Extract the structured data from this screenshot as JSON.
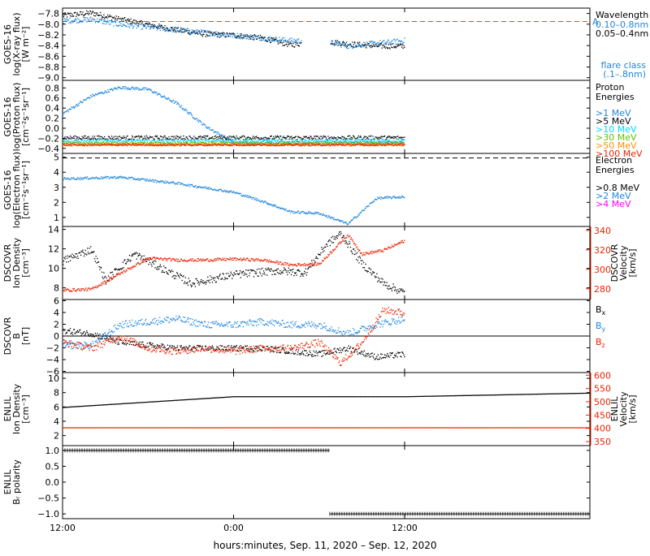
{
  "colors": {
    "black": "#000000",
    "blue": "#1f86dc",
    "cyan": "#00d8ff",
    "green": "#5ec400",
    "orange": "#ff9000",
    "red": "#ee2200",
    "magenta": "#ff00ff"
  },
  "xaxis": {
    "start": "2020-09-11T12:00",
    "end": "2020-09-13T01:00",
    "ticks": [
      {
        "t": "2020-09-11T12:00",
        "label": "12:00"
      },
      {
        "t": "2020-09-12T00:00",
        "label": "0:00"
      },
      {
        "t": "2020-09-12T12:00",
        "label": "12:00"
      }
    ],
    "title": "hours:minutes, Sep. 11, 2020 – Sep. 12, 2020"
  },
  "chart_data": [
    {
      "type": "scatter",
      "panel": "xray",
      "ylabel": [
        "GOES-16",
        "log(X-ray flux)",
        "[W m⁻²]"
      ],
      "ylim": [
        -9.05,
        -7.7
      ],
      "yticks": [
        -7.8,
        -8.0,
        -8.2,
        -8.4,
        -8.6,
        -8.8,
        -9.0
      ],
      "ytick_labels": [
        "−7.8",
        "−8.0",
        "−8.2",
        "−8.4",
        "−8.6",
        "−8.8",
        "−9.0"
      ],
      "right_ticks": [
        {
          "y": -7.95,
          "label": "A"
        }
      ],
      "reference_line": {
        "y": -7.95,
        "style": "dashed",
        "color": "#1f86dc"
      },
      "legend_title": "Wavelength",
      "legend_extra": [
        "flare class",
        "(.1–.8nm)"
      ],
      "series": [
        {
          "name": "0.05–0.4nm",
          "color": "#000000",
          "knots": [
            [
              "2020-09-11T12:00",
              -7.83
            ],
            [
              "2020-09-11T14:00",
              -7.78
            ],
            [
              "2020-09-11T16:00",
              -7.9
            ],
            [
              "2020-09-11T18:00",
              -8.0
            ],
            [
              "2020-09-11T20:00",
              -8.1
            ],
            [
              "2020-09-11T22:00",
              -8.18
            ],
            [
              "2020-09-12T00:00",
              -8.2
            ],
            [
              "2020-09-12T02:00",
              -8.25
            ],
            [
              "2020-09-12T04:00",
              -8.38
            ],
            [
              "2020-09-12T06:00",
              -8.3
            ],
            [
              "2020-09-12T08:00",
              -8.36
            ],
            [
              "2020-09-12T10:00",
              -8.4
            ],
            [
              "2020-09-12T12:00",
              -8.4
            ]
          ],
          "gaps": [
            [
              "2020-09-12T04:45",
              "2020-09-12T06:45"
            ]
          ],
          "end": "2020-09-12T12:00",
          "noise": 0.05
        },
        {
          "name": "0.10–0.8nm",
          "color": "#1f86dc",
          "knots": [
            [
              "2020-09-11T12:00",
              -7.93
            ],
            [
              "2020-09-11T14:00",
              -7.9
            ],
            [
              "2020-09-11T16:00",
              -8.0
            ],
            [
              "2020-09-11T18:00",
              -8.05
            ],
            [
              "2020-09-11T20:00",
              -8.1
            ],
            [
              "2020-09-11T22:00",
              -8.15
            ],
            [
              "2020-09-12T00:00",
              -8.2
            ],
            [
              "2020-09-12T02:00",
              -8.25
            ],
            [
              "2020-09-12T04:00",
              -8.3
            ],
            [
              "2020-09-12T06:00",
              -8.3
            ],
            [
              "2020-09-12T08:00",
              -8.4
            ],
            [
              "2020-09-12T10:00",
              -8.35
            ],
            [
              "2020-09-12T12:00",
              -8.3
            ]
          ],
          "gaps": [
            [
              "2020-09-12T04:45",
              "2020-09-12T06:45"
            ]
          ],
          "end": "2020-09-12T12:00",
          "noise": 0.05
        }
      ]
    },
    {
      "type": "scatter",
      "panel": "proton",
      "ylabel": [
        "GOES-16",
        "log(Proton flux)",
        "[cm⁻²s⁻¹sr⁻¹]"
      ],
      "ylim": [
        -0.5,
        0.95
      ],
      "yticks": [
        0.8,
        0.6,
        0.4,
        0.2,
        0.0,
        -0.2,
        -0.4
      ],
      "ytick_labels": [
        "0.8",
        "0.6",
        "0.4",
        "0.2",
        "0.0",
        "−0.2",
        "−0.4"
      ],
      "legend_title": "Proton Energies",
      "series": [
        {
          "name": ">1 MeV",
          "color": "#1f86dc",
          "knots": [
            [
              "2020-09-11T12:00",
              0.3
            ],
            [
              "2020-09-11T14:00",
              0.65
            ],
            [
              "2020-09-11T16:00",
              0.82
            ],
            [
              "2020-09-11T18:00",
              0.78
            ],
            [
              "2020-09-11T20:00",
              0.5
            ],
            [
              "2020-09-11T22:00",
              0.05
            ],
            [
              "2020-09-12T00:00",
              -0.28
            ],
            [
              "2020-09-12T12:00",
              -0.28
            ]
          ],
          "end": "2020-09-12T12:00",
          "noise": 0.03
        },
        {
          "name": ">5 MeV",
          "color": "#000000",
          "knots": [
            [
              "2020-09-11T12:00",
              -0.18
            ],
            [
              "2020-09-12T12:00",
              -0.18
            ]
          ],
          "end": "2020-09-12T12:00",
          "noise": 0.04
        },
        {
          "name": ">10 MeV",
          "color": "#00d8ff",
          "knots": [
            [
              "2020-09-11T12:00",
              -0.24
            ],
            [
              "2020-09-12T12:00",
              -0.24
            ]
          ],
          "end": "2020-09-12T12:00",
          "noise": 0.03
        },
        {
          "name": ">30 MeV",
          "color": "#5ec400",
          "knots": [
            [
              "2020-09-11T12:00",
              -0.29
            ],
            [
              "2020-09-12T12:00",
              -0.29
            ]
          ],
          "end": "2020-09-12T12:00",
          "noise": 0.03
        },
        {
          "name": ">50 MeV",
          "color": "#ff9000",
          "knots": [
            [
              "2020-09-11T12:00",
              -0.31
            ],
            [
              "2020-09-12T12:00",
              -0.31
            ]
          ],
          "end": "2020-09-12T12:00",
          "noise": 0.03
        },
        {
          "name": ">100 MeV",
          "color": "#ee2200",
          "knots": [
            [
              "2020-09-11T12:00",
              -0.32
            ],
            [
              "2020-09-12T12:00",
              -0.32
            ]
          ],
          "end": "2020-09-12T12:00",
          "noise": 0.02
        }
      ]
    },
    {
      "type": "scatter",
      "panel": "electron",
      "ylabel": [
        "GOES-16",
        "log(Electron flux)",
        "[cm⁻²s⁻¹sr⁻¹]"
      ],
      "ylim": [
        0.4,
        5.25
      ],
      "yticks": [
        5,
        4,
        3,
        2,
        1
      ],
      "ytick_labels": [
        "5",
        "4",
        "3",
        "2",
        "1"
      ],
      "reference_line": {
        "y": 4.95,
        "style": "dashed",
        "color": "#000000"
      },
      "legend_title": "Electron Energies",
      "series": [
        {
          "name": ">0.8 MeV",
          "color": "#000000",
          "knots": [],
          "noise": 0
        },
        {
          "name": ">2 MeV",
          "color": "#1f86dc",
          "knots": [
            [
              "2020-09-11T12:00",
              3.6
            ],
            [
              "2020-09-11T16:00",
              3.7
            ],
            [
              "2020-09-11T20:00",
              3.3
            ],
            [
              "2020-09-11T22:00",
              3.0
            ],
            [
              "2020-09-12T00:00",
              2.7
            ],
            [
              "2020-09-12T02:00",
              2.1
            ],
            [
              "2020-09-12T04:00",
              1.4
            ],
            [
              "2020-09-12T06:00",
              1.3
            ],
            [
              "2020-09-12T08:00",
              0.6
            ],
            [
              "2020-09-12T10:00",
              2.3
            ],
            [
              "2020-09-12T12:00",
              2.4
            ]
          ],
          "end": "2020-09-12T12:00",
          "noise": 0.08
        },
        {
          "name": ">4 MeV",
          "color": "#ff00ff",
          "knots": [],
          "noise": 0
        }
      ]
    },
    {
      "type": "scatter",
      "panel": "dscovr_density",
      "ylabel": [
        "DSCOVR",
        "Ion Density",
        "[cm⁻³]"
      ],
      "ylim": [
        6.8,
        14.3
      ],
      "yticks": [
        14,
        12,
        10,
        8
      ],
      "ytick_labels": [
        "14",
        "12",
        "10",
        "8"
      ],
      "ylabel_right": [
        "DSCOVR",
        "Velocity",
        "[km/s]"
      ],
      "ylim_right": [
        269,
        344
      ],
      "yticks_right": [
        340,
        320,
        300,
        280
      ],
      "ytick_labels_right": [
        "340",
        "320",
        "300",
        "280"
      ],
      "series": [
        {
          "name": "Ion Density",
          "color": "#000000",
          "axis": "left",
          "knots": [
            [
              "2020-09-11T12:00",
              10.8
            ],
            [
              "2020-09-11T14:00",
              12.0
            ],
            [
              "2020-09-11T15:00",
              8.8
            ],
            [
              "2020-09-11T17:00",
              11.5
            ],
            [
              "2020-09-11T19:00",
              10.0
            ],
            [
              "2020-09-11T21:00",
              8.5
            ],
            [
              "2020-09-12T00:00",
              9.4
            ],
            [
              "2020-09-12T03:00",
              9.8
            ],
            [
              "2020-09-12T05:00",
              9.6
            ],
            [
              "2020-09-12T06:30",
              12.5
            ],
            [
              "2020-09-12T07:30",
              13.6
            ],
            [
              "2020-09-12T09:00",
              10.5
            ],
            [
              "2020-09-12T10:30",
              8.5
            ],
            [
              "2020-09-12T12:00",
              7.5
            ]
          ],
          "end": "2020-09-12T12:00",
          "noise": 0.4
        },
        {
          "name": "Velocity",
          "color": "#ee2200",
          "axis": "right",
          "knots": [
            [
              "2020-09-11T12:00",
              279
            ],
            [
              "2020-09-11T14:00",
              280
            ],
            [
              "2020-09-11T16:00",
              296
            ],
            [
              "2020-09-11T18:00",
              312
            ],
            [
              "2020-09-11T20:00",
              310
            ],
            [
              "2020-09-11T22:00",
              310
            ],
            [
              "2020-09-12T00:00",
              311
            ],
            [
              "2020-09-12T02:00",
              310
            ],
            [
              "2020-09-12T04:00",
              305
            ],
            [
              "2020-09-12T06:00",
              306
            ],
            [
              "2020-09-12T08:00",
              336
            ],
            [
              "2020-09-12T09:00",
              316
            ],
            [
              "2020-09-12T10:30",
              320
            ],
            [
              "2020-09-12T12:00",
              330
            ]
          ],
          "end": "2020-09-12T12:00",
          "noise": 1.5
        }
      ]
    },
    {
      "type": "scatter",
      "panel": "dscovr_b",
      "ylabel": [
        "DSCOVR",
        "B",
        "[nT]"
      ],
      "ylim": [
        -6.2,
        6.2
      ],
      "yticks": [
        6,
        4,
        2,
        0,
        -2,
        -4,
        -6
      ],
      "ytick_labels": [
        "6",
        "4",
        "2",
        "0",
        "−2",
        "−4",
        "−6"
      ],
      "zero_line": true,
      "series": [
        {
          "name": "Bₓ",
          "color": "#000000",
          "knots": [
            [
              "2020-09-11T12:00",
              1.0
            ],
            [
              "2020-09-11T14:00",
              0.5
            ],
            [
              "2020-09-11T16:00",
              -1.0
            ],
            [
              "2020-09-11T18:00",
              -1.5
            ],
            [
              "2020-09-11T20:00",
              -2.0
            ],
            [
              "2020-09-11T22:00",
              -2.0
            ],
            [
              "2020-09-12T00:00",
              -2.0
            ],
            [
              "2020-09-12T02:00",
              -2.0
            ],
            [
              "2020-09-12T04:00",
              -2.5
            ],
            [
              "2020-09-12T06:00",
              -3.0
            ],
            [
              "2020-09-12T08:00",
              -2.0
            ],
            [
              "2020-09-12T10:00",
              -3.5
            ],
            [
              "2020-09-12T12:00",
              -3.0
            ]
          ],
          "end": "2020-09-12T12:00",
          "noise": 0.5
        },
        {
          "name": "Bᵧ",
          "color": "#1f86dc",
          "knots": [
            [
              "2020-09-11T12:00",
              -1.5
            ],
            [
              "2020-09-11T14:00",
              -1.5
            ],
            [
              "2020-09-11T16:00",
              2.0
            ],
            [
              "2020-09-11T18:00",
              2.5
            ],
            [
              "2020-09-11T20:00",
              3.0
            ],
            [
              "2020-09-11T22:00",
              2.0
            ],
            [
              "2020-09-12T00:00",
              2.0
            ],
            [
              "2020-09-12T02:00",
              2.5
            ],
            [
              "2020-09-12T04:00",
              2.0
            ],
            [
              "2020-09-12T06:00",
              2.0
            ],
            [
              "2020-09-12T08:00",
              0.5
            ],
            [
              "2020-09-12T10:00",
              2.0
            ],
            [
              "2020-09-12T12:00",
              3.0
            ]
          ],
          "end": "2020-09-12T12:00",
          "noise": 0.6
        },
        {
          "name": "B_z",
          "color": "#ee2200",
          "knots": [
            [
              "2020-09-11T12:00",
              -1.0
            ],
            [
              "2020-09-11T14:00",
              -2.0
            ],
            [
              "2020-09-11T16:00",
              0.0
            ],
            [
              "2020-09-11T18:00",
              -2.0
            ],
            [
              "2020-09-11T20:00",
              -2.5
            ],
            [
              "2020-09-11T22:00",
              -2.0
            ],
            [
              "2020-09-12T00:00",
              -2.5
            ],
            [
              "2020-09-12T02:00",
              -2.0
            ],
            [
              "2020-09-12T04:00",
              -2.0
            ],
            [
              "2020-09-12T06:00",
              -1.0
            ],
            [
              "2020-09-12T07:30",
              -4.5
            ],
            [
              "2020-09-12T09:00",
              -1.0
            ],
            [
              "2020-09-12T10:30",
              4.5
            ],
            [
              "2020-09-12T12:00",
              4.0
            ]
          ],
          "end": "2020-09-12T12:00",
          "noise": 0.6
        }
      ],
      "legend_labels": [
        {
          "main": "B",
          "sub": "x",
          "color": "#000000"
        },
        {
          "main": "B",
          "sub": "y",
          "color": "#1f86dc"
        },
        {
          "main": "B",
          "sub": "z",
          "color": "#ee2200"
        }
      ]
    },
    {
      "type": "scatter",
      "panel": "enlil_density",
      "ylabel": [
        "ENLIL",
        "Ion Density",
        "[cm⁻³]"
      ],
      "ylim": [
        0.6,
        10.8
      ],
      "yticks": [
        10,
        8,
        6,
        4,
        2
      ],
      "ytick_labels": [
        "10",
        "8",
        "6",
        "4",
        "2"
      ],
      "ylabel_right": [
        "ENLIL",
        "Velocity",
        "[km/s]"
      ],
      "ylim_right": [
        335,
        610
      ],
      "yticks_right": [
        600,
        550,
        500,
        450,
        400,
        350
      ],
      "ytick_labels_right": [
        "600",
        "550",
        "500",
        "450",
        "400",
        "350"
      ],
      "series": [
        {
          "name": "Ion Density",
          "color": "#000000",
          "axis": "left",
          "knots": [
            [
              "2020-09-11T12:00",
              6.0
            ],
            [
              "2020-09-12T00:00",
              7.5
            ],
            [
              "2020-09-12T12:00",
              7.5
            ],
            [
              "2020-09-13T01:00",
              8.0
            ]
          ],
          "end": "2020-09-13T01:00",
          "noise": 0
        },
        {
          "name": "Velocity",
          "color": "#ee2200",
          "axis": "right",
          "knots": [
            [
              "2020-09-11T12:00",
              404
            ],
            [
              "2020-09-13T01:00",
              404
            ]
          ],
          "end": "2020-09-13T01:00",
          "noise": 0
        }
      ]
    },
    {
      "type": "scatter",
      "panel": "enlil_polarity",
      "ylabel": [
        "ENLIL",
        "Bᵣ polarity"
      ],
      "ylim": [
        -1.15,
        1.15
      ],
      "yticks": [
        1.0,
        0.5,
        0.0,
        -0.5,
        -1.0
      ],
      "ytick_labels": [
        "1.0",
        "0.5",
        "0.0",
        "−0.5",
        "−1.0"
      ],
      "series": [
        {
          "name": "polarity",
          "color": "#000000",
          "segments": [
            [
              "2020-09-11T12:00",
              "2020-09-12T06:45",
              1.0
            ],
            [
              "2020-09-12T06:45",
              "2020-09-13T01:00",
              -1.0
            ]
          ]
        }
      ]
    }
  ]
}
